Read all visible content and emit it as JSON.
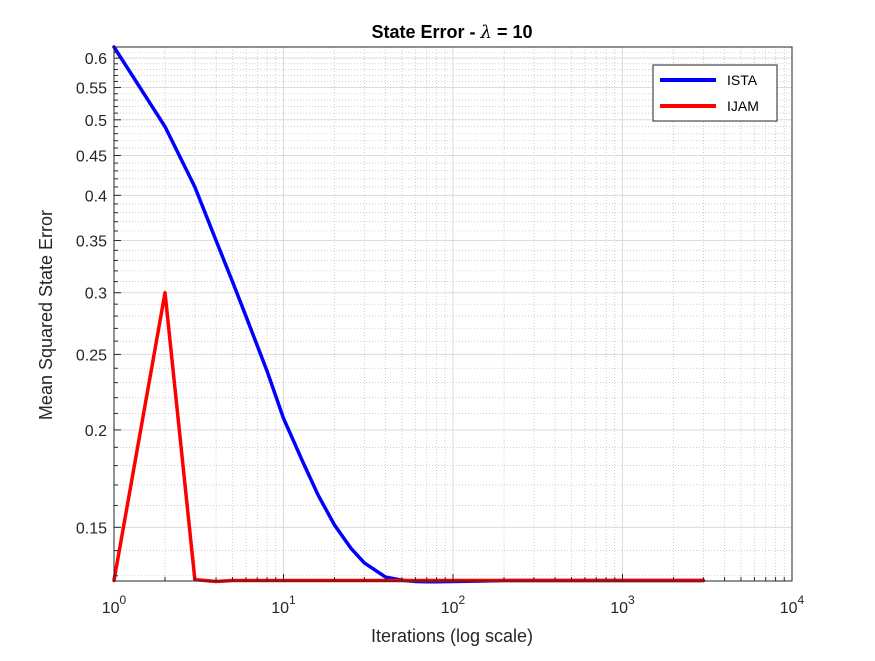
{
  "chart_data": {
    "type": "line",
    "title_prefix": "State Error - ",
    "title_symbol": "λ",
    "title_suffix": " = 10",
    "xlabel": "Iterations (log scale)",
    "ylabel": "Mean Squared State Error",
    "xscale": "log",
    "yscale": "log",
    "xlim": [
      1,
      10000
    ],
    "ylim": [
      0.128,
      0.62
    ],
    "grid": true,
    "minor_grid": true,
    "legend_position": "top-right",
    "x_ticks": [
      {
        "base": "10",
        "exp": "0",
        "value": 1
      },
      {
        "base": "10",
        "exp": "1",
        "value": 10
      },
      {
        "base": "10",
        "exp": "2",
        "value": 100
      },
      {
        "base": "10",
        "exp": "3",
        "value": 1000
      },
      {
        "base": "10",
        "exp": "4",
        "value": 10000
      }
    ],
    "y_ticks": [
      {
        "label": "0.15",
        "value": 0.15
      },
      {
        "label": "0.2",
        "value": 0.2
      },
      {
        "label": "0.25",
        "value": 0.25
      },
      {
        "label": "0.3",
        "value": 0.3
      },
      {
        "label": "0.35",
        "value": 0.35
      },
      {
        "label": "0.4",
        "value": 0.4
      },
      {
        "label": "0.45",
        "value": 0.45
      },
      {
        "label": "0.5",
        "value": 0.5
      },
      {
        "label": "0.55",
        "value": 0.55
      },
      {
        "label": "0.6",
        "value": 0.6
      }
    ],
    "series": [
      {
        "name": "ISTA",
        "color": "#0000ff",
        "x": [
          1,
          2,
          3,
          4,
          5,
          6,
          8,
          10,
          13,
          16,
          20,
          25,
          30,
          40,
          50,
          60,
          70,
          80,
          100,
          150,
          200,
          300,
          500,
          1000,
          2000,
          3000
        ],
        "y": [
          0.62,
          0.49,
          0.41,
          0.35,
          0.31,
          0.28,
          0.238,
          0.207,
          0.182,
          0.165,
          0.151,
          0.141,
          0.135,
          0.1295,
          0.1283,
          0.1278,
          0.1277,
          0.1277,
          0.1278,
          0.128,
          0.1282,
          0.1282,
          0.1282,
          0.1282,
          0.1282,
          0.1282
        ]
      },
      {
        "name": "IJAM",
        "color": "#ff0000",
        "x": [
          1,
          2,
          3,
          4,
          5,
          6,
          10,
          100,
          1000,
          3000
        ],
        "y": [
          0.1282,
          0.3,
          0.1285,
          0.1278,
          0.1282,
          0.1282,
          0.1282,
          0.1282,
          0.1282,
          0.1282
        ]
      }
    ]
  }
}
